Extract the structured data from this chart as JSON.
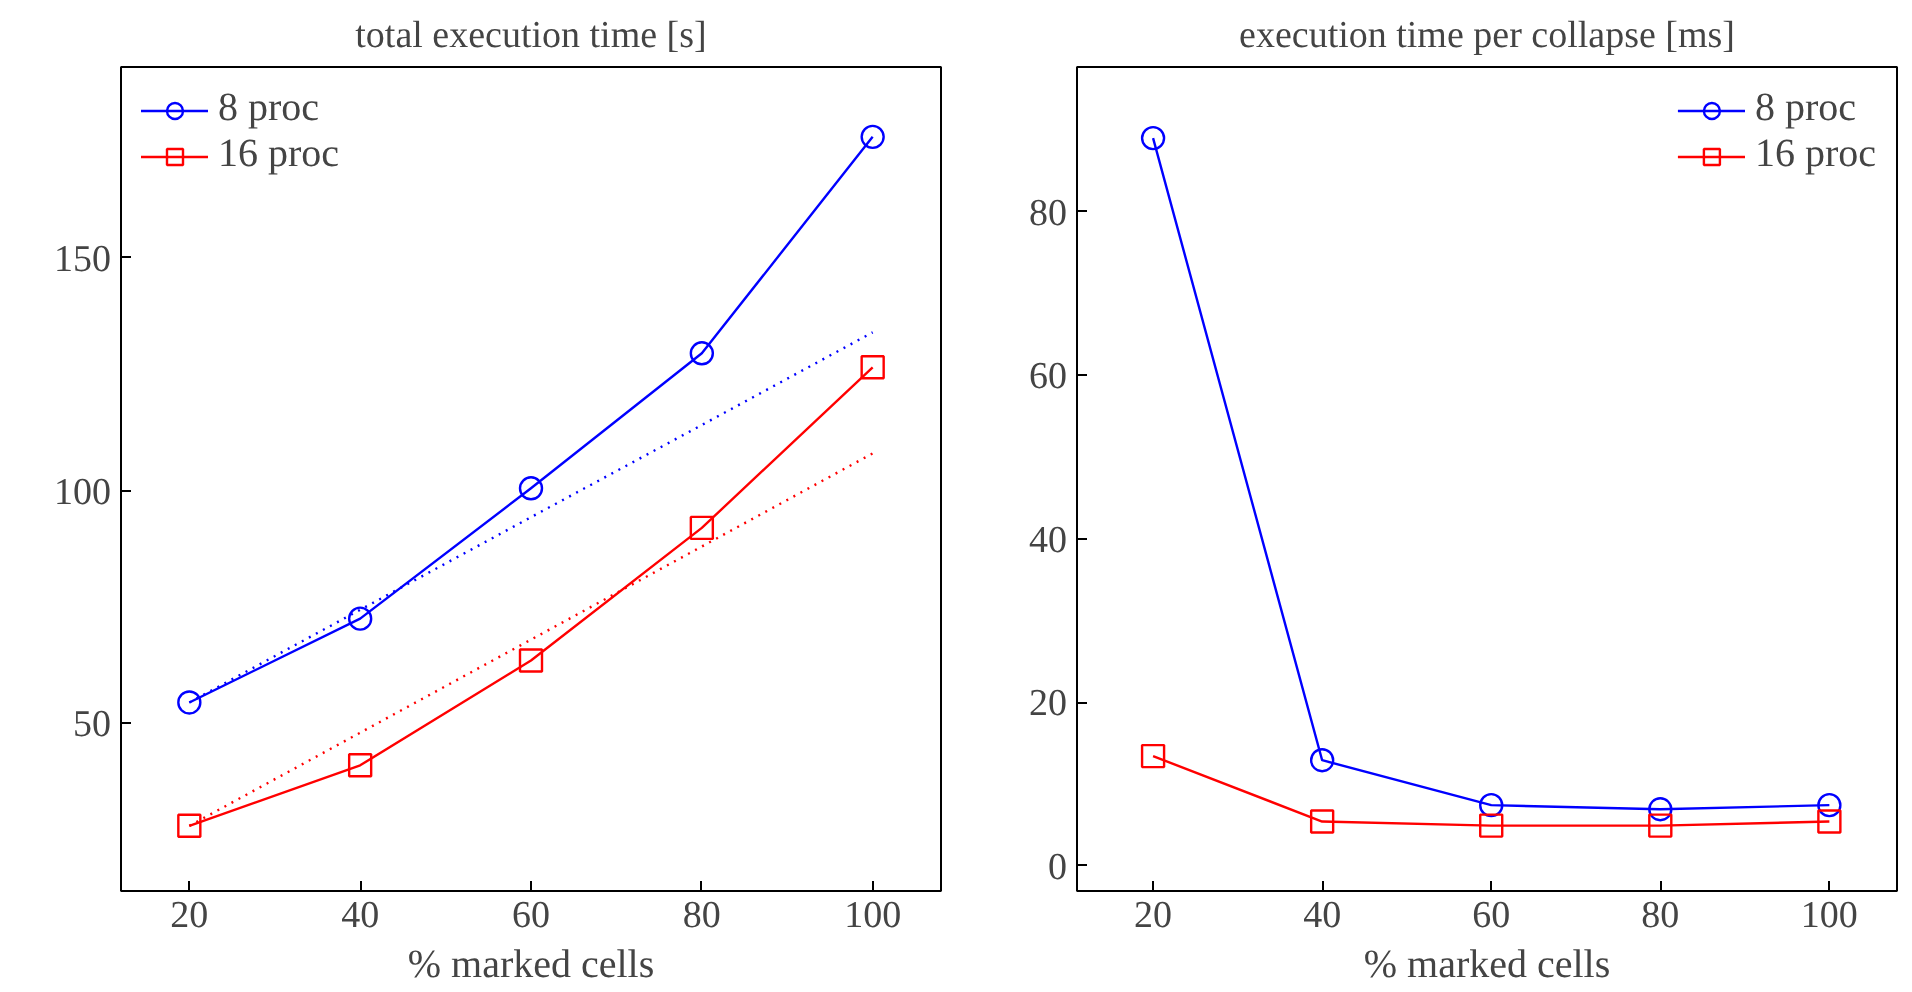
{
  "chart_data": [
    {
      "type": "line",
      "title": "total execution time [s]",
      "xlabel": "% marked cells",
      "x": [
        20,
        40,
        60,
        80,
        100
      ],
      "xlim": [
        12,
        108
      ],
      "xticks": [
        20,
        40,
        60,
        80,
        100
      ],
      "ylim": [
        14,
        191
      ],
      "yticks": [
        50,
        100,
        150
      ],
      "grid": false,
      "legend": "top left",
      "series": [
        {
          "name": "8 proc",
          "color": "#0000ff",
          "marker": "circle",
          "values": [
            54.5,
            72.5,
            100.5,
            129.5,
            176
          ]
        },
        {
          "name": "16 proc",
          "color": "#ff0000",
          "marker": "square",
          "values": [
            28,
            41,
            63.5,
            92,
            126.5
          ]
        },
        {
          "color": "#0000ff",
          "marker": "none",
          "line_style": "dotted",
          "values": [
            54.5,
            74.4,
            94.3,
            114.1,
            134
          ]
        },
        {
          "color": "#ff0000",
          "marker": "none",
          "line_style": "dotted",
          "values": [
            28,
            48,
            68,
            88,
            108
          ]
        }
      ]
    },
    {
      "type": "line",
      "title": "execution time per collapse [ms]",
      "xlabel": "% marked cells",
      "x": [
        20,
        40,
        60,
        80,
        100
      ],
      "xlim": [
        11,
        108
      ],
      "xticks": [
        20,
        40,
        60,
        80,
        100
      ],
      "ylim": [
        -3.1,
        97.7
      ],
      "yticks": [
        0,
        20,
        40,
        60,
        80
      ],
      "grid": false,
      "legend": "top right",
      "series": [
        {
          "name": "8 proc",
          "color": "#0000ff",
          "marker": "circle",
          "values": [
            89,
            12.9,
            7.4,
            6.9,
            7.4
          ]
        },
        {
          "name": "16 proc",
          "color": "#ff0000",
          "marker": "square",
          "values": [
            13.4,
            5.4,
            4.9,
            4.9,
            5.4
          ]
        }
      ]
    }
  ]
}
